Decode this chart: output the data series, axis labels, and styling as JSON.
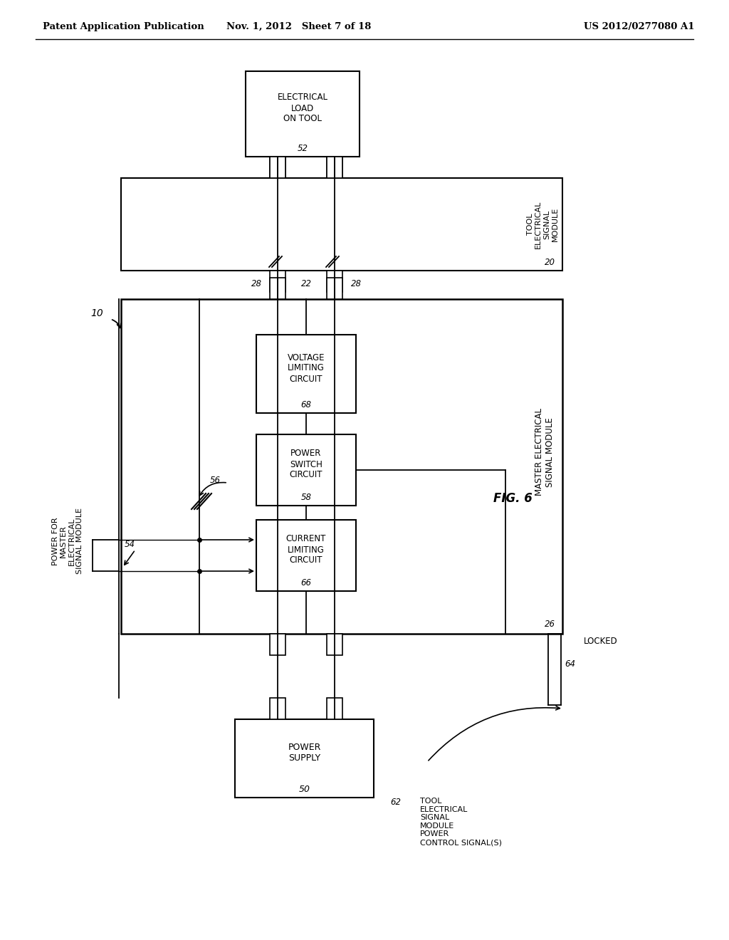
{
  "bg_color": "#ffffff",
  "header_left": "Patent Application Publication",
  "header_mid": "Nov. 1, 2012   Sheet 7 of 18",
  "header_right": "US 2012/0277080 A1",
  "fig_label": "FIG. 6"
}
